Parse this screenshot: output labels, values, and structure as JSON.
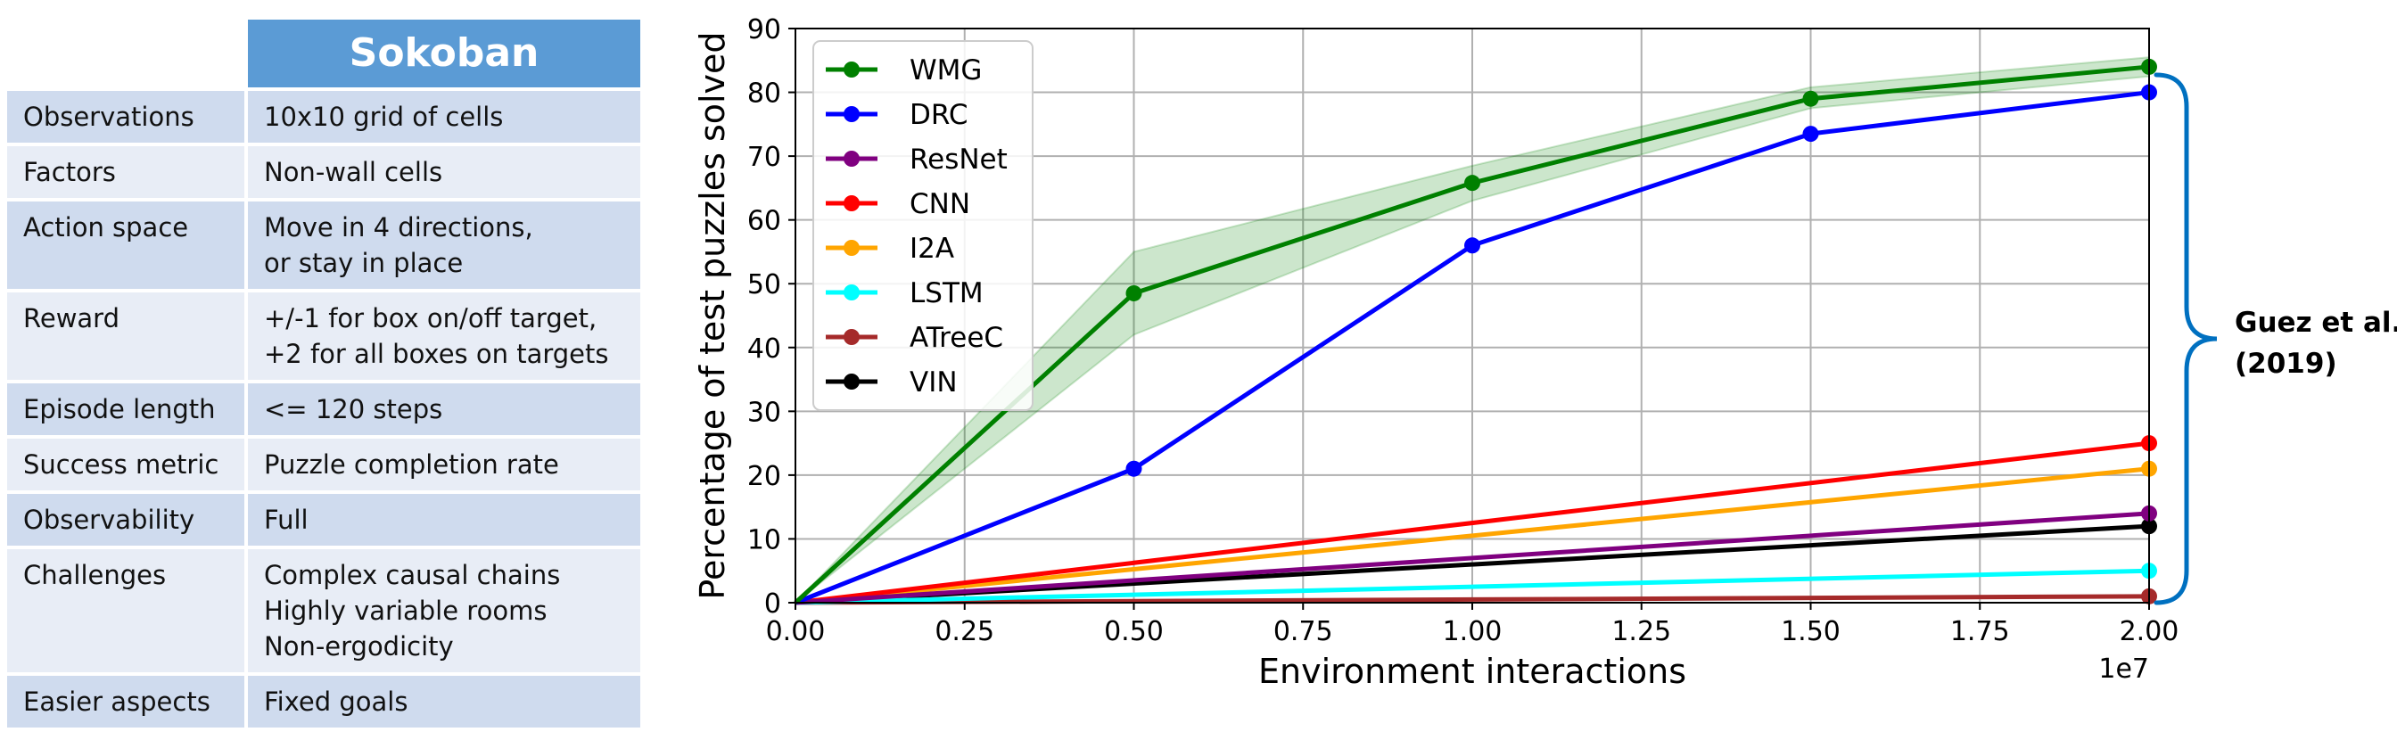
{
  "table": {
    "title": "Sokoban",
    "rows": [
      {
        "label": "Observations",
        "value": "10x10 grid of cells"
      },
      {
        "label": "Factors",
        "value": "Non-wall cells"
      },
      {
        "label": "Action space",
        "value": "Move in 4 directions,\nor stay in place"
      },
      {
        "label": "Reward",
        "value": "+/-1 for box on/off target,\n+2 for all boxes on targets"
      },
      {
        "label": "Episode length",
        "value": "<= 120 steps"
      },
      {
        "label": "Success metric",
        "value": "Puzzle completion rate"
      },
      {
        "label": "Observability",
        "value": "Full"
      },
      {
        "label": "Challenges",
        "value": "Complex causal chains\nHighly variable rooms\nNon-ergodicity"
      },
      {
        "label": "Easier aspects",
        "value": "Fixed goals"
      }
    ]
  },
  "chart_data": {
    "type": "line",
    "xlabel": "Environment interactions",
    "ylabel": "Percentage of test puzzles solved",
    "x_offset_label": "1e7",
    "xlim": [
      0,
      2.0
    ],
    "ylim": [
      0,
      90
    ],
    "xticks": [
      "0.00",
      "0.25",
      "0.50",
      "0.75",
      "1.00",
      "1.25",
      "1.50",
      "1.75",
      "2.00"
    ],
    "yticks": [
      "0",
      "10",
      "20",
      "30",
      "40",
      "50",
      "60",
      "70",
      "80",
      "90"
    ],
    "grid": true,
    "legend_position": "upper-left",
    "series": [
      {
        "name": "WMG",
        "color": "#008000",
        "x": [
          0,
          0.5,
          1.0,
          1.5,
          2.0
        ],
        "y": [
          0,
          48.5,
          65.8,
          79,
          84
        ],
        "markers": [
          1,
          2,
          3,
          4
        ],
        "band_low": [
          0,
          42,
          63,
          77.5,
          82.5
        ],
        "band_high": [
          0,
          55,
          68.5,
          80.8,
          85.5
        ]
      },
      {
        "name": "DRC",
        "color": "#0000ff",
        "x": [
          0,
          0.5,
          1.0,
          1.5,
          2.0
        ],
        "y": [
          0,
          21,
          56,
          73.5,
          80
        ],
        "markers": [
          1,
          2,
          3,
          4
        ]
      },
      {
        "name": "ResNet",
        "color": "#800080",
        "x": [
          0,
          2.0
        ],
        "y": [
          0,
          14
        ],
        "markers": [
          1
        ]
      },
      {
        "name": "CNN",
        "color": "#ff0000",
        "x": [
          0,
          2.0
        ],
        "y": [
          0,
          25
        ],
        "markers": [
          1
        ]
      },
      {
        "name": "I2A",
        "color": "#ffa500",
        "x": [
          0,
          2.0
        ],
        "y": [
          0,
          21
        ],
        "markers": [
          1
        ]
      },
      {
        "name": "LSTM",
        "color": "#00ffff",
        "x": [
          0,
          2.0
        ],
        "y": [
          0,
          5
        ],
        "markers": [
          1
        ]
      },
      {
        "name": "ATreeC",
        "color": "#a52a2a",
        "x": [
          0,
          2.0
        ],
        "y": [
          0,
          1
        ],
        "markers": [
          1
        ]
      },
      {
        "name": "VIN",
        "color": "#000000",
        "x": [
          0,
          2.0
        ],
        "y": [
          0,
          12
        ],
        "markers": [
          1
        ]
      }
    ],
    "annotation": {
      "text_line1": "Guez et al.",
      "text_line2": "(2019)",
      "brace_color": "#0070c0"
    }
  }
}
